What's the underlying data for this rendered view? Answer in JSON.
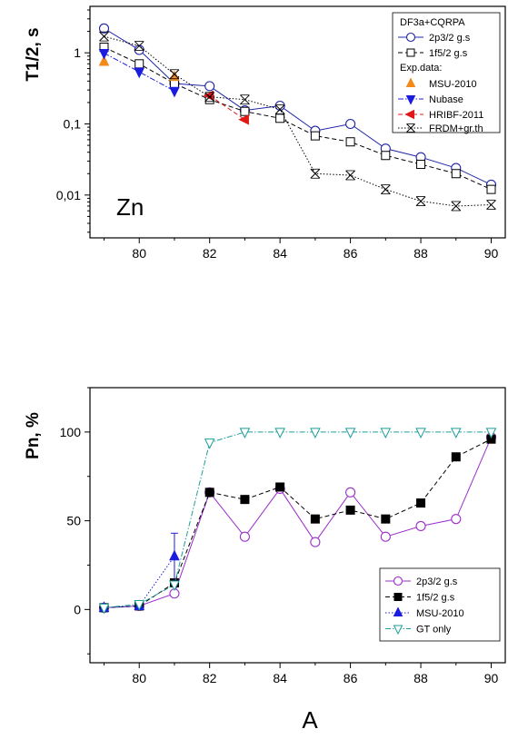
{
  "chart_data": [
    {
      "type": "line",
      "panel": "top",
      "ylabel": "T1/2, s",
      "yscale": "log",
      "xlim": [
        78.6,
        90.4
      ],
      "ylim": [
        0.0025,
        4.5
      ],
      "x_ticks": [
        80,
        82,
        84,
        86,
        88,
        90
      ],
      "x_tick_labels": [
        "80",
        "82",
        "84",
        "86",
        "88",
        "90"
      ],
      "y_ticks": [
        1,
        0.1,
        0.01
      ],
      "y_tick_labels": [
        "1",
        "0,1",
        "0,01"
      ],
      "annotation": "Zn",
      "legend": {
        "placement": "top-right",
        "title": "DF3a+CQRPA",
        "subheading": "Exp.data:",
        "entries": [
          "2p3/2 g.s",
          "1f5/2 g.s",
          "MSU-2010",
          "Nubase",
          "HRIBF-2011",
          "FRDM+gr.th"
        ]
      },
      "series": [
        {
          "name": "2p3/2 g.s",
          "color": "#1f24a8",
          "marker": "open-circle",
          "line": "solid",
          "x": [
            79,
            80,
            81,
            82,
            83,
            84,
            85,
            86,
            87,
            88,
            89,
            90
          ],
          "y": [
            2.2,
            1.1,
            0.37,
            0.34,
            0.155,
            0.18,
            0.08,
            0.1,
            0.045,
            0.034,
            0.024,
            0.014
          ]
        },
        {
          "name": "1f5/2 g.s",
          "color": "#000000",
          "marker": "open-square",
          "line": "dashed",
          "x": [
            79,
            80,
            81,
            82,
            83,
            84,
            85,
            86,
            87,
            88,
            89,
            90
          ],
          "y": [
            1.2,
            0.7,
            0.37,
            0.22,
            0.15,
            0.12,
            0.068,
            0.056,
            0.036,
            0.027,
            0.02,
            0.012
          ]
        },
        {
          "name": "MSU-2010",
          "color": "#f28a1a",
          "marker": "filled-triangle-up",
          "line": "none",
          "x": [
            79,
            81
          ],
          "y": [
            0.75,
            0.46
          ]
        },
        {
          "name": "Nubase",
          "color": "#1c1ce0",
          "marker": "filled-triangle-down",
          "line": "dashdot",
          "x": [
            79,
            80,
            81
          ],
          "y": [
            0.99,
            0.54,
            0.29
          ]
        },
        {
          "name": "HRIBF-2011",
          "color": "#e01818",
          "marker": "filled-triangle-left",
          "line": "dashed",
          "x": [
            82,
            83
          ],
          "y": [
            0.25,
            0.115
          ]
        },
        {
          "name": "FRDM+gr.th",
          "color": "#000000",
          "marker": "x-cross",
          "line": "dotted",
          "x": [
            79,
            80,
            81,
            82,
            83,
            84,
            85,
            86,
            87,
            88,
            89,
            90
          ],
          "y": [
            1.7,
            1.25,
            0.5,
            0.24,
            0.22,
            0.16,
            0.02,
            0.019,
            0.012,
            0.0082,
            0.007,
            0.0073
          ]
        }
      ]
    },
    {
      "type": "line",
      "panel": "bottom",
      "xlabel": "A",
      "ylabel": "Pn, %",
      "xlim": [
        78.6,
        90.4
      ],
      "ylim": [
        -30,
        125
      ],
      "x_ticks": [
        80,
        82,
        84,
        86,
        88,
        90
      ],
      "x_tick_labels": [
        "80",
        "82",
        "84",
        "86",
        "88",
        "90"
      ],
      "y_ticks": [
        0,
        50,
        100
      ],
      "y_tick_labels": [
        "0",
        "50",
        "100"
      ],
      "legend": {
        "placement": "bottom-right",
        "entries": [
          "2p3/2 g.s",
          "1f5/2 g.s",
          "MSU-2010",
          "GT only"
        ]
      },
      "series": [
        {
          "name": "2p3/2 g.s",
          "color": "#9b2fc9",
          "marker": "open-circle",
          "line": "solid",
          "x": [
            79,
            80,
            81,
            82,
            83,
            84,
            85,
            86,
            87,
            88,
            89,
            90
          ],
          "y": [
            1,
            2,
            9,
            66,
            41,
            68,
            38,
            66,
            41,
            47,
            51,
            97
          ]
        },
        {
          "name": "1f5/2 g.s",
          "color": "#000000",
          "marker": "filled-square",
          "line": "dashed",
          "x": [
            79,
            80,
            81,
            82,
            83,
            84,
            85,
            86,
            87,
            88,
            89,
            90
          ],
          "y": [
            1,
            2,
            15,
            66,
            62,
            69,
            51,
            56,
            51,
            60,
            86,
            96
          ]
        },
        {
          "name": "MSU-2010",
          "color": "#1c1ce0",
          "marker": "filled-triangle-up",
          "line": "dotted",
          "x": [
            79,
            80,
            81
          ],
          "y": [
            1,
            2,
            30
          ],
          "yerr": [
            0,
            0,
            13
          ]
        },
        {
          "name": "GT only",
          "color": "#1f9e9a",
          "marker": "open-triangle-down",
          "line": "dashdot",
          "x": [
            79,
            80,
            81,
            82,
            83,
            84,
            85,
            86,
            87,
            88,
            89,
            90
          ],
          "y": [
            1,
            3,
            14,
            94,
            100,
            100,
            100,
            100,
            100,
            100,
            100,
            100
          ]
        }
      ]
    }
  ]
}
